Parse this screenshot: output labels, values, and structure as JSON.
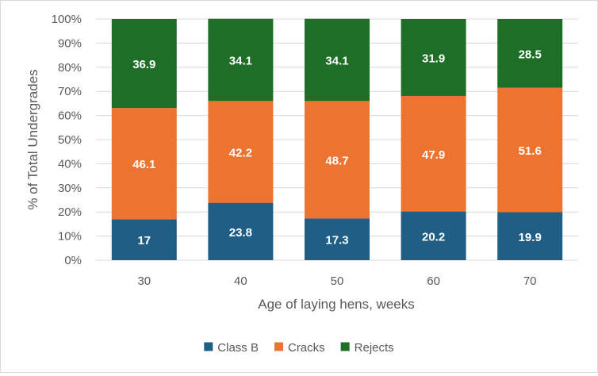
{
  "chart_data": {
    "type": "bar",
    "stacked": true,
    "percent_axis": true,
    "title": "",
    "xlabel": "Age of laying hens, weeks",
    "ylabel": "% of Total Undergrades",
    "categories": [
      "30",
      "40",
      "50",
      "60",
      "70"
    ],
    "ylim": [
      0,
      100
    ],
    "yticks": [
      0,
      10,
      20,
      30,
      40,
      50,
      60,
      70,
      80,
      90,
      100
    ],
    "ytick_labels": [
      "0%",
      "10%",
      "20%",
      "30%",
      "40%",
      "50%",
      "60%",
      "70%",
      "80%",
      "90%",
      "100%"
    ],
    "grid": true,
    "legend_position": "bottom",
    "series": [
      {
        "name": "Class B",
        "color": "#1f5f86",
        "values": [
          17,
          23.8,
          17.3,
          20.2,
          19.9
        ],
        "labels": [
          "17",
          "23.8",
          "17.3",
          "20.2",
          "19.9"
        ]
      },
      {
        "name": "Cracks",
        "color": "#ed7430",
        "values": [
          46.1,
          42.2,
          48.7,
          47.9,
          51.6
        ],
        "labels": [
          "46.1",
          "42.2",
          "48.7",
          "47.9",
          "51.6"
        ]
      },
      {
        "name": "Rejects",
        "color": "#1e6e28",
        "values": [
          36.9,
          34.1,
          34.1,
          31.9,
          28.5
        ],
        "labels": [
          "36.9",
          "34.1",
          "34.1",
          "31.9",
          "28.5"
        ]
      }
    ]
  }
}
